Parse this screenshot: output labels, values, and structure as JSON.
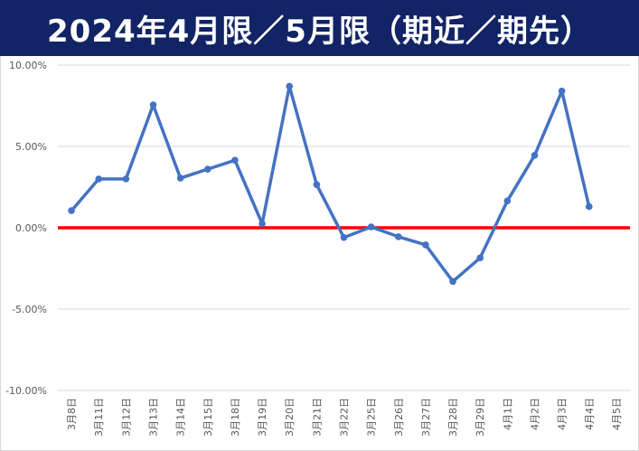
{
  "chart_data": {
    "type": "line",
    "title": "2024年4月限／5月限（期近／期先）",
    "categories": [
      "3月8日",
      "3月11日",
      "3月12日",
      "3月13日",
      "3月14日",
      "3月15日",
      "3月18日",
      "3月19日",
      "3月20日",
      "3月21日",
      "3月22日",
      "3月25日",
      "3月26日",
      "3月27日",
      "3月28日",
      "3月29日",
      "4月1日",
      "4月2日",
      "4月3日",
      "4月4日",
      "4月5日"
    ],
    "series": [
      {
        "values": [
          1.05,
          3.0,
          3.0,
          7.55,
          3.05,
          3.6,
          4.15,
          0.25,
          8.7,
          2.65,
          -0.6,
          0.05,
          -0.55,
          -1.05,
          -3.3,
          -1.85,
          1.65,
          4.45,
          8.4,
          1.3,
          null
        ],
        "color": "#4472c4"
      }
    ],
    "reference_line": {
      "value": 0.0,
      "color": "#ff0000"
    },
    "yticks": [
      "10.00%",
      "5.00%",
      "0.00%",
      "-5.00%",
      "-10.00%"
    ],
    "ylim": [
      -10,
      10
    ],
    "grid": true,
    "xlabel": "",
    "ylabel": ""
  }
}
